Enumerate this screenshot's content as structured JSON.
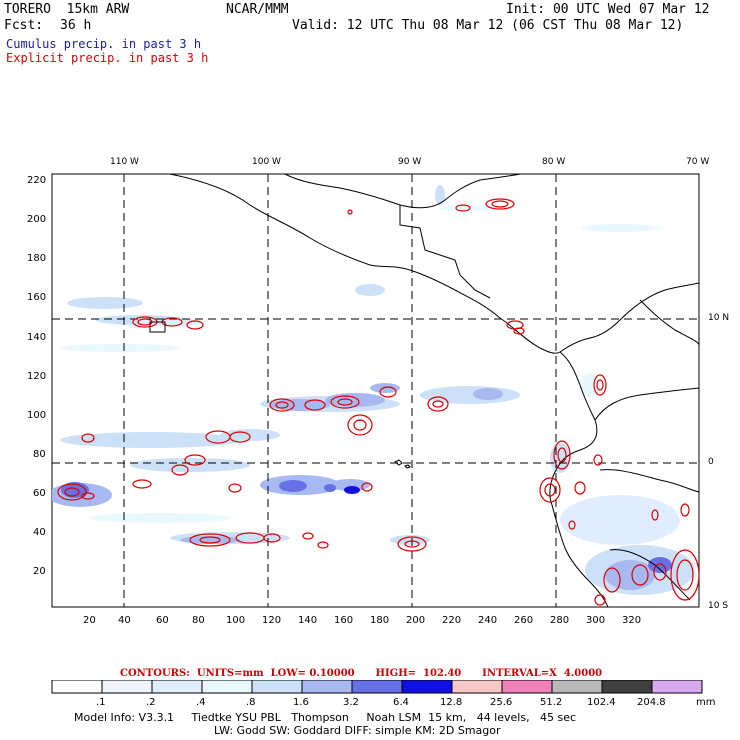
{
  "header": {
    "model": "TORERO  15km ARW",
    "org": "NCAR/MMM",
    "init": "Init: 00 UTC Wed 07 Mar 12",
    "fcst_label": "Fcst:",
    "fcst_value": "36 h",
    "valid": "Valid: 12 UTC Thu 08 Mar 12 (06 CST Thu 08 Mar 12)"
  },
  "legend": {
    "cumulus": "Cumulus precip. in past 3 h",
    "explicit": "Explicit precip. in past 3 h",
    "cumulus_color": "#2020a0",
    "explicit_color": "#dd0000"
  },
  "axes": {
    "top_lon": [
      "110 W",
      "100 W",
      "90 W",
      "80 W",
      "70 W"
    ],
    "right_lat": [
      "10 N",
      "0",
      "10 S"
    ],
    "left_y": [
      "220",
      "200",
      "180",
      "160",
      "140",
      "120",
      "100",
      "80",
      "60",
      "40",
      "20"
    ],
    "bottom_x": [
      "20",
      "40",
      "60",
      "80",
      "100",
      "120",
      "140",
      "160",
      "180",
      "200",
      "220",
      "240",
      "260",
      "280",
      "300",
      "320"
    ]
  },
  "contours_line": {
    "label": "CONTOURS:  UNITS=mm  LOW= 0.10000      HIGH=  102.40      INTERVAL=X  4.0000"
  },
  "colorbar": {
    "values": [
      ".1",
      ".2",
      ".4",
      ".8",
      "1.6",
      "3.2",
      "6.4",
      "12.8",
      "25.6",
      "51.2",
      "102.4",
      "204.8"
    ],
    "unit": "mm",
    "colors": [
      "#ffffff",
      "#f0f4ff",
      "#e0ecff",
      "#eaf8ff",
      "#cce0f8",
      "#a8b8f0",
      "#6870e8",
      "#1010e0",
      "#f8c8c8",
      "#f080b8",
      "#b8b8b8",
      "#404040",
      "#d8a8f0"
    ]
  },
  "model_info": {
    "line1": "Model Info: V3.3.1     Tiedtke YSU PBL   Thompson     Noah LSM  15 km,   44 levels,   45 sec",
    "line2": "LW: Godd SW: Goddard DIFF: simple KM: 2D Smagor"
  }
}
